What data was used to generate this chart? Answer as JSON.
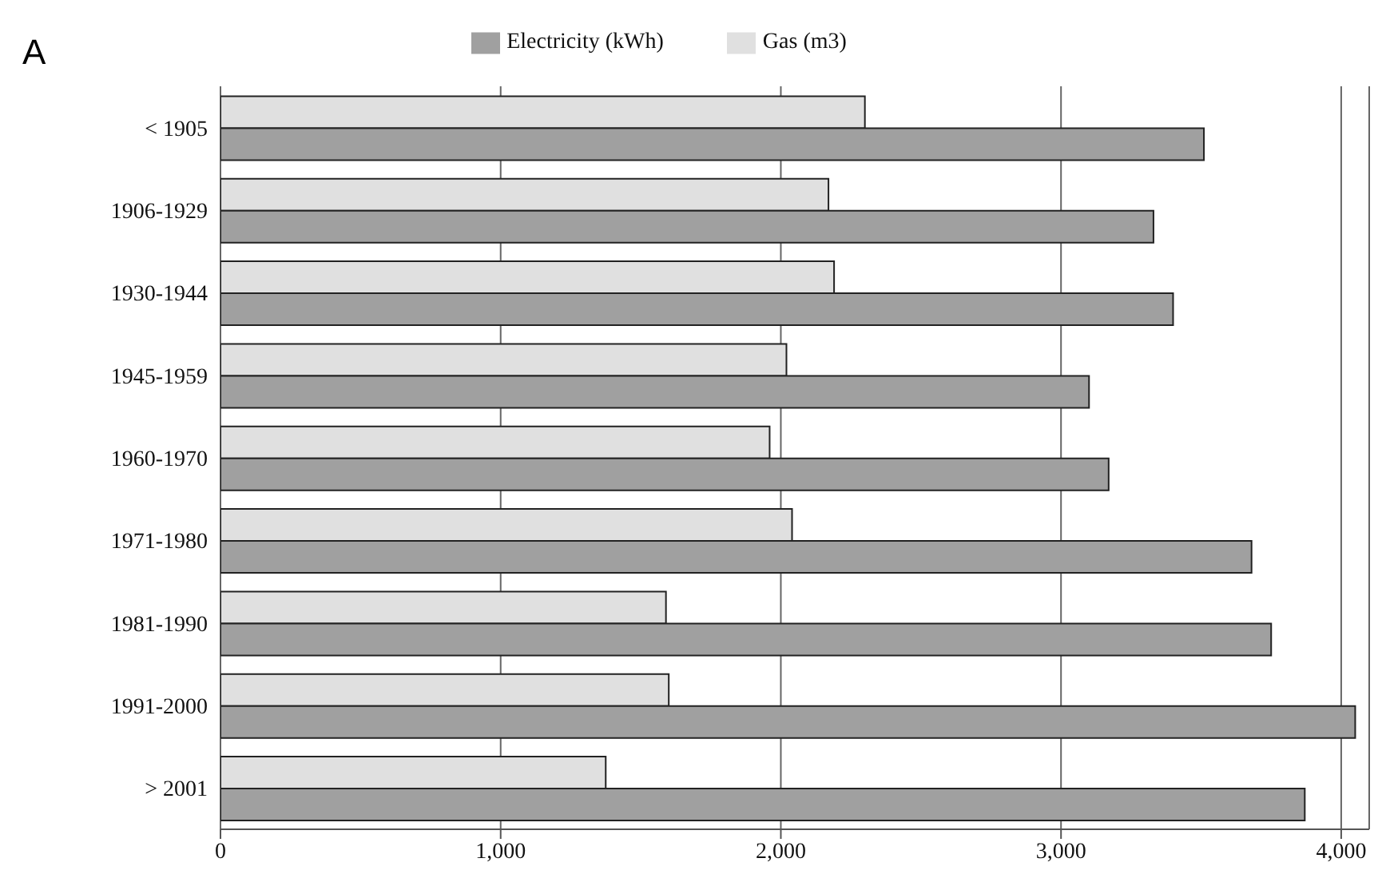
{
  "chart_data": {
    "type": "bar",
    "orientation": "horizontal",
    "title": "A",
    "categories": [
      "< 1905",
      "1906-1929",
      "1930-1944",
      "1945-1959",
      "1960-1970",
      "1971-1980",
      "1981-1990",
      "1991-2000",
      "> 2001"
    ],
    "series": [
      {
        "name": "Gas (m3)",
        "color": "#e0e0e0",
        "values": [
          2300,
          2170,
          2190,
          2020,
          1960,
          2040,
          1590,
          1600,
          1375
        ]
      },
      {
        "name": "Electricity (kWh)",
        "color": "#a0a0a0",
        "values": [
          3510,
          3330,
          3400,
          3100,
          3170,
          3680,
          3750,
          4050,
          3870
        ]
      }
    ],
    "xlim": [
      0,
      4100
    ],
    "xticks": [
      {
        "value": 0,
        "label": "0"
      },
      {
        "value": 1000,
        "label": "1,000"
      },
      {
        "value": 2000,
        "label": "2,000"
      },
      {
        "value": 3000,
        "label": "3,000"
      },
      {
        "value": 4000,
        "label": "4,000"
      }
    ],
    "grid": "x",
    "legend": "top"
  }
}
